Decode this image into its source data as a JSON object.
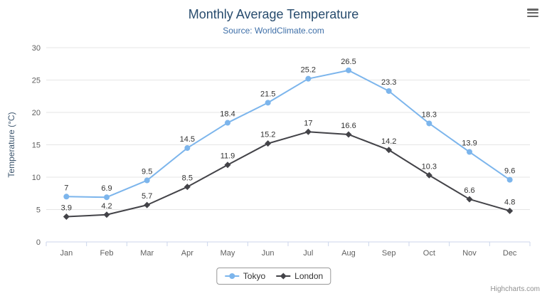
{
  "credit": "Highcharts.com",
  "chart_data": {
    "type": "line",
    "title": "Monthly Average Temperature",
    "subtitle": "Source: WorldClimate.com",
    "categories": [
      "Jan",
      "Feb",
      "Mar",
      "Apr",
      "May",
      "Jun",
      "Jul",
      "Aug",
      "Sep",
      "Oct",
      "Nov",
      "Dec"
    ],
    "series": [
      {
        "name": "Tokyo",
        "color": "#7cb5ec",
        "marker": "circle",
        "values": [
          7,
          6.9,
          9.5,
          14.5,
          18.4,
          21.5,
          25.2,
          26.5,
          23.3,
          18.3,
          13.9,
          9.6
        ]
      },
      {
        "name": "London",
        "color": "#434348",
        "marker": "diamond",
        "values": [
          3.9,
          4.2,
          5.7,
          8.5,
          11.9,
          15.2,
          17,
          16.6,
          14.2,
          10.3,
          6.6,
          4.8
        ]
      }
    ],
    "xlabel": "",
    "ylabel": "Temperature (°C)",
    "ylim": [
      0,
      30
    ],
    "ytick_interval": 5,
    "grid": true,
    "legend_position": "bottom",
    "data_labels": true
  },
  "colors": {
    "title": "#274b6d",
    "subtitle": "#3e6fa8",
    "ylabel": "#3E576F",
    "axis_label": "#606060",
    "grid": "#e6e6e6",
    "axis_line": "#ccd6eb",
    "data_label": "#333333",
    "legend_border": "#999999",
    "credit": "#909090"
  }
}
